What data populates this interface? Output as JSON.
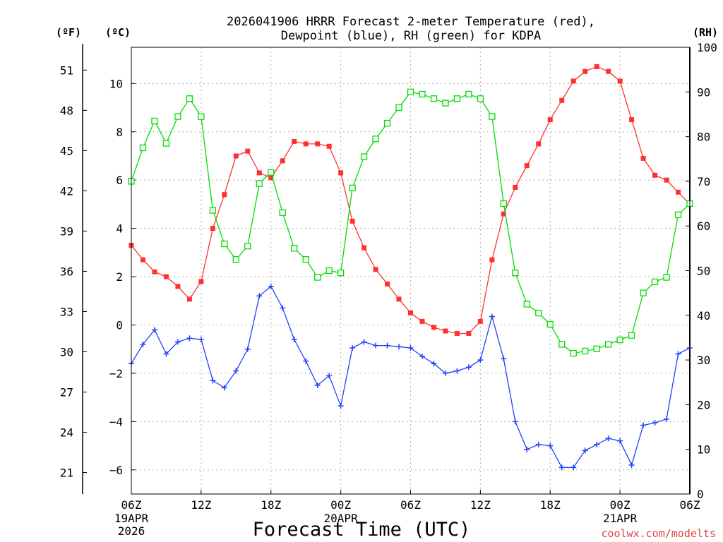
{
  "chart_data": {
    "type": "line",
    "title_line1": "2026041906 HRRR Forecast 2-meter Temperature (red),",
    "title_line2": "Dewpoint (blue), RH (green) for KDPA",
    "xlabel": "Forecast Time (UTC)",
    "credit": "coolwx.com/modelts",
    "unit_f_label": "(ºF)",
    "unit_c_label": "(ºC)",
    "unit_rh_label": "(RH)",
    "x_hours": [
      0,
      1,
      2,
      3,
      4,
      5,
      6,
      7,
      8,
      9,
      10,
      11,
      12,
      13,
      14,
      15,
      16,
      17,
      18,
      19,
      20,
      21,
      22,
      23,
      24,
      25,
      26,
      27,
      28,
      29,
      30,
      31,
      32,
      33,
      34,
      35,
      36,
      37,
      38,
      39,
      40,
      41,
      42,
      43,
      44,
      45,
      46,
      47,
      48
    ],
    "xlim": [
      0,
      48
    ],
    "x_ticks": [
      {
        "hour": 0,
        "label": "06Z",
        "sub1": "19APR",
        "sub2": "2026"
      },
      {
        "hour": 6,
        "label": "12Z",
        "sub1": "",
        "sub2": ""
      },
      {
        "hour": 12,
        "label": "18Z",
        "sub1": "",
        "sub2": ""
      },
      {
        "hour": 18,
        "label": "00Z",
        "sub1": "20APR",
        "sub2": ""
      },
      {
        "hour": 24,
        "label": "06Z",
        "sub1": "",
        "sub2": ""
      },
      {
        "hour": 30,
        "label": "12Z",
        "sub1": "",
        "sub2": ""
      },
      {
        "hour": 36,
        "label": "18Z",
        "sub1": "",
        "sub2": ""
      },
      {
        "hour": 42,
        "label": "00Z",
        "sub1": "21APR",
        "sub2": ""
      },
      {
        "hour": 48,
        "label": "06Z",
        "sub1": "",
        "sub2": ""
      }
    ],
    "c_axis": {
      "ylim": [
        -7,
        11.5
      ],
      "ticks": [
        -6,
        -4,
        -2,
        0,
        2,
        4,
        6,
        8,
        10
      ],
      "labels": [
        "−6",
        "−4",
        "−2",
        "0",
        "2",
        "4",
        "6",
        "8",
        "10"
      ]
    },
    "f_axis": {
      "ticks": [
        21,
        24,
        27,
        30,
        33,
        36,
        39,
        42,
        45,
        48,
        51
      ],
      "labels": [
        "21",
        "24",
        "27",
        "30",
        "33",
        "36",
        "39",
        "42",
        "45",
        "48",
        "51"
      ]
    },
    "rh_axis": {
      "ylim": [
        0,
        100
      ],
      "ticks": [
        0,
        10,
        20,
        30,
        40,
        50,
        60,
        70,
        80,
        90,
        100
      ],
      "labels": [
        "0",
        "10",
        "20",
        "30",
        "40",
        "50",
        "60",
        "70",
        "80",
        "90",
        "100"
      ]
    },
    "grid": true,
    "series": [
      {
        "name": "Temperature",
        "axis": "c",
        "color": "#ff3030",
        "marker": "filled-square",
        "values": [
          3.3,
          2.7,
          2.2,
          2.0,
          1.6,
          1.07,
          1.8,
          4.0,
          5.4,
          7.0,
          7.2,
          6.3,
          6.1,
          6.8,
          7.6,
          7.5,
          7.5,
          7.4,
          6.3,
          4.3,
          3.2,
          2.3,
          1.7,
          1.07,
          0.5,
          0.15,
          -0.1,
          -0.25,
          -0.35,
          -0.35,
          0.15,
          2.7,
          4.6,
          5.7,
          6.6,
          7.5,
          8.5,
          9.3,
          10.1,
          10.5,
          10.7,
          10.5,
          10.1,
          8.5,
          6.9,
          6.2,
          6.0,
          5.5,
          5.0
        ]
      },
      {
        "name": "Dewpoint",
        "axis": "c",
        "color": "#2040ff",
        "marker": "plus",
        "values": [
          -1.6,
          -0.8,
          -0.2,
          -1.2,
          -0.7,
          -0.55,
          -0.6,
          -2.3,
          -2.6,
          -1.9,
          -1.0,
          1.2,
          1.6,
          0.7,
          -0.6,
          -1.5,
          -2.5,
          -2.1,
          -3.35,
          -0.95,
          -0.7,
          -0.85,
          -0.85,
          -0.9,
          -0.95,
          -1.3,
          -1.6,
          -2.0,
          -1.9,
          -1.75,
          -1.45,
          0.35,
          -1.4,
          -4.0,
          -5.15,
          -4.95,
          -5.0,
          -5.9,
          -5.9,
          -5.2,
          -4.95,
          -4.7,
          -4.8,
          -5.8,
          -4.15,
          -4.05,
          -3.9,
          -1.2,
          -0.95
        ]
      },
      {
        "name": "Relative Humidity",
        "axis": "rh",
        "color": "#00dd00",
        "marker": "open-square",
        "values": [
          70,
          77.5,
          83.5,
          78.5,
          84.5,
          88.5,
          84.5,
          63.5,
          56,
          52.5,
          55.5,
          69.5,
          72,
          63,
          55,
          52.5,
          48.5,
          50,
          49.5,
          68.5,
          75.5,
          79.5,
          83,
          86.5,
          90,
          89.5,
          88.5,
          87.5,
          88.5,
          89.5,
          88.5,
          84.5,
          65,
          49.5,
          42.5,
          40.5,
          38,
          33.5,
          31.5,
          32,
          32.5,
          33.5,
          34.5,
          35.5,
          45,
          47.5,
          48.5,
          62.5,
          65
        ]
      }
    ]
  }
}
